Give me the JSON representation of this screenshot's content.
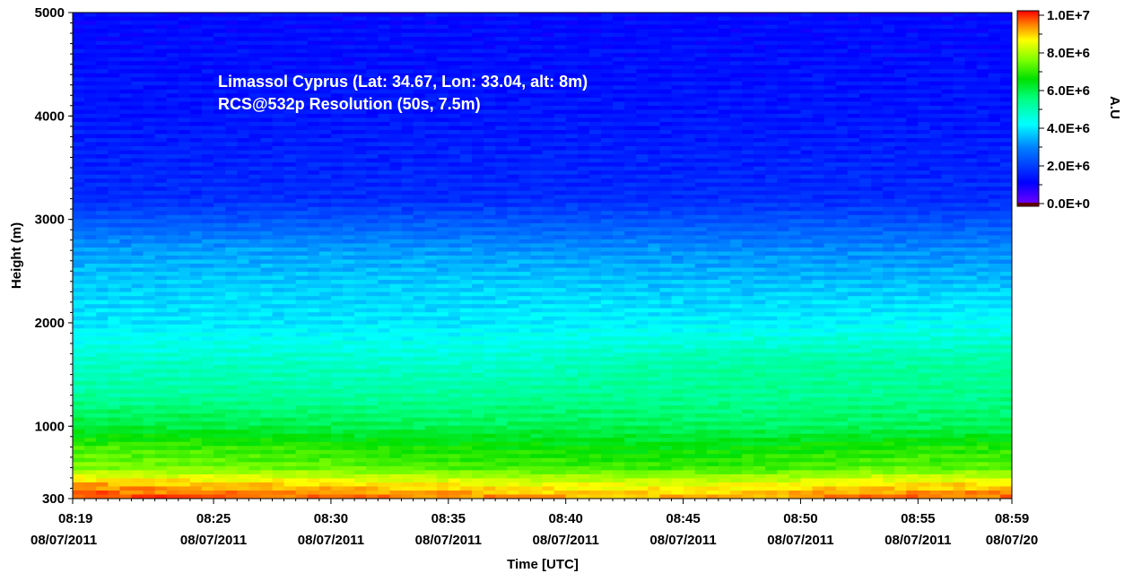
{
  "chart_data": {
    "type": "heatmap",
    "annotation": {
      "line1": "Limassol Cyprus (Lat: 34.67, Lon: 33.04, alt: 8m)",
      "line2": "RCS@532p Resolution (50s, 7.5m)"
    },
    "xlabel": "Time [UTC]",
    "ylabel": "Height (m)",
    "colorbar_label": "A.U",
    "ylim": [
      300,
      5000
    ],
    "clim": [
      0,
      10000000
    ],
    "y_ticks": [
      {
        "value": 300,
        "label": "300"
      },
      {
        "value": 1000,
        "label": "1000"
      },
      {
        "value": 2000,
        "label": "2000"
      },
      {
        "value": 3000,
        "label": "3000"
      },
      {
        "value": 4000,
        "label": "4000"
      },
      {
        "value": 5000,
        "label": "5000"
      }
    ],
    "x_ticks": [
      {
        "minute": 0,
        "time": "08:19",
        "date": "08/07/2011"
      },
      {
        "minute": 6,
        "time": "08:25",
        "date": "08/07/2011"
      },
      {
        "minute": 11,
        "time": "08:30",
        "date": "08/07/2011"
      },
      {
        "minute": 16,
        "time": "08:35",
        "date": "08/07/2011"
      },
      {
        "minute": 21,
        "time": "08:40",
        "date": "08/07/2011"
      },
      {
        "minute": 26,
        "time": "08:45",
        "date": "08/07/2011"
      },
      {
        "minute": 31,
        "time": "08:50",
        "date": "08/07/2011"
      },
      {
        "minute": 36,
        "time": "08:55",
        "date": "08/07/2011"
      },
      {
        "minute": 40,
        "time": "08:59",
        "date": "08/07/20"
      }
    ],
    "colorbar_ticks": [
      {
        "value": 10000000,
        "label": "1.0E+7"
      },
      {
        "value": 8000000,
        "label": "8.0E+6"
      },
      {
        "value": 6000000,
        "label": "6.0E+6"
      },
      {
        "value": 4000000,
        "label": "4.0E+6"
      },
      {
        "value": 2000000,
        "label": "2.0E+6"
      },
      {
        "value": 0,
        "label": "0.0E+0"
      }
    ],
    "time_minutes": [
      0,
      5,
      10,
      15,
      20,
      25,
      30,
      35,
      40
    ],
    "height_m": [
      300,
      450,
      600,
      800,
      1000,
      1100,
      1300,
      1600,
      2000,
      2400,
      2700,
      3200,
      4000,
      5000
    ],
    "values": [
      [
        9800000,
        9600000,
        9500000,
        9400000,
        9200000,
        9000000,
        9200000,
        9500000,
        9500000
      ],
      [
        9000000,
        8800000,
        8700000,
        8500000,
        8300000,
        8200000,
        8300000,
        8600000,
        8600000
      ],
      [
        7500000,
        7400000,
        7300000,
        7100000,
        7000000,
        6900000,
        7000000,
        7200000,
        7200000
      ],
      [
        7000000,
        6900000,
        6800000,
        6600000,
        6500000,
        6400000,
        6500000,
        6700000,
        6700000
      ],
      [
        6000000,
        6000000,
        5900000,
        5800000,
        5900000,
        5800000,
        5700000,
        5800000,
        5800000
      ],
      [
        5800000,
        5800000,
        5700000,
        5600000,
        5700000,
        5600000,
        5600000,
        5700000,
        5700000
      ],
      [
        5200000,
        5200000,
        5200000,
        5200000,
        5300000,
        5300000,
        5300000,
        5300000,
        5400000
      ],
      [
        4800000,
        4800000,
        4800000,
        4700000,
        4800000,
        5100000,
        5200000,
        5200000,
        5200000
      ],
      [
        4000000,
        4000000,
        4000000,
        4000000,
        4100000,
        4100000,
        4100000,
        4200000,
        4300000
      ],
      [
        3700000,
        3700000,
        3700000,
        3700000,
        3700000,
        3600000,
        3600000,
        3600000,
        3600000
      ],
      [
        3300000,
        3300000,
        3300000,
        3300000,
        3200000,
        3200000,
        3100000,
        3100000,
        3100000
      ],
      [
        1800000,
        1800000,
        1800000,
        1800000,
        1800000,
        1800000,
        1800000,
        1800000,
        1800000
      ],
      [
        1500000,
        1500000,
        1500000,
        1500000,
        1500000,
        1500000,
        1500000,
        1500000,
        1500000
      ],
      [
        1300000,
        1300000,
        1300000,
        1300000,
        1300000,
        1300000,
        1300000,
        1300000,
        1300000
      ]
    ]
  }
}
